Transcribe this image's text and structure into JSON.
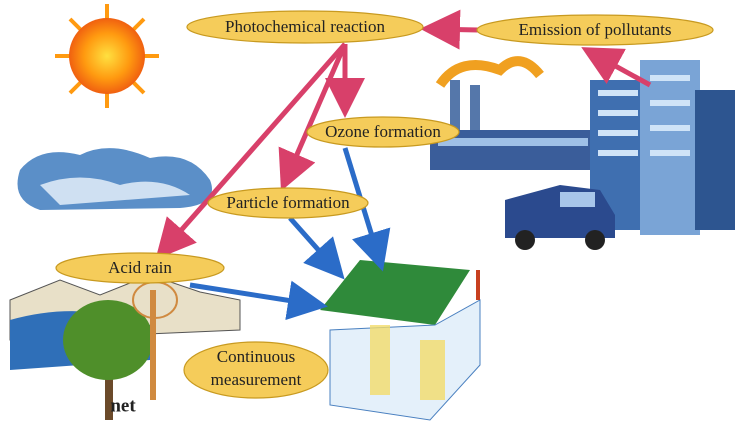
{
  "nodes": [
    {
      "label": "Photochemical reaction"
    },
    {
      "label": "Emission of pollutants"
    },
    {
      "label": "Ozone formation"
    },
    {
      "label": "Particle formation"
    },
    {
      "label": "Acid rain"
    },
    {
      "lines": [
        "Continuous",
        "measurement"
      ]
    }
  ],
  "fragment": "net"
}
